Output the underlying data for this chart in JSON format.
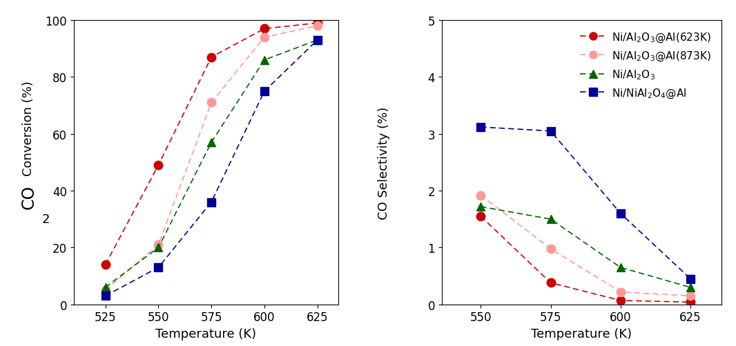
{
  "left_plot": {
    "xlabel": "Temperature (K)",
    "xlim": [
      510,
      635
    ],
    "ylim": [
      0,
      100
    ],
    "xticks": [
      525,
      550,
      575,
      600,
      625
    ],
    "yticks": [
      0,
      20,
      40,
      60,
      80,
      100
    ],
    "series": [
      {
        "x": [
          525,
          550,
          575,
          600,
          625
        ],
        "y": [
          14,
          49,
          87,
          97,
          99
        ],
        "color": "#cc0000",
        "marker": "o",
        "markersize": 9
      },
      {
        "x": [
          525,
          550,
          575,
          600,
          625
        ],
        "y": [
          5,
          21,
          71,
          94,
          98
        ],
        "color": "#ff9999",
        "marker": "o",
        "markersize": 9
      },
      {
        "x": [
          525,
          550,
          575,
          600,
          625
        ],
        "y": [
          6,
          20,
          57,
          86,
          93
        ],
        "color": "#006600",
        "marker": "^",
        "markersize": 9
      },
      {
        "x": [
          525,
          550,
          575,
          600,
          625
        ],
        "y": [
          3,
          13,
          36,
          75,
          93
        ],
        "color": "#000099",
        "marker": "s",
        "markersize": 9
      }
    ]
  },
  "right_plot": {
    "xlabel": "Temperature (K)",
    "ylabel": "CO Selectivity (%)",
    "xlim": [
      536,
      636
    ],
    "ylim": [
      0,
      5
    ],
    "xticks": [
      550,
      575,
      600,
      625
    ],
    "yticks": [
      0,
      1,
      2,
      3,
      4,
      5
    ],
    "series": [
      {
        "x": [
          550,
          575,
          600,
          625
        ],
        "y": [
          1.55,
          0.38,
          0.07,
          0.04
        ],
        "color": "#cc0000",
        "marker": "o",
        "markersize": 9
      },
      {
        "x": [
          550,
          575,
          600,
          625
        ],
        "y": [
          1.92,
          0.98,
          0.22,
          0.15
        ],
        "color": "#ff9999",
        "marker": "o",
        "markersize": 9
      },
      {
        "x": [
          550,
          575,
          600,
          625
        ],
        "y": [
          1.72,
          1.5,
          0.65,
          0.3
        ],
        "color": "#006600",
        "marker": "^",
        "markersize": 9
      },
      {
        "x": [
          550,
          575,
          600,
          625
        ],
        "y": [
          3.12,
          3.05,
          1.6,
          0.45
        ],
        "color": "#000099",
        "marker": "s",
        "markersize": 9
      }
    ]
  },
  "legend_entries": [
    {
      "color": "#cc0000",
      "marker": "o",
      "label": "Ni/Al$_2$O$_3$@Al(623K)"
    },
    {
      "color": "#ff9999",
      "marker": "o",
      "label": "Ni/Al$_2$O$_3$@Al(873K)"
    },
    {
      "color": "#006600",
      "marker": "^",
      "label": "Ni/Al$_2$O$_3$"
    },
    {
      "color": "#000099",
      "marker": "s",
      "label": "Ni/NiAl$_2$O$_4$@Al"
    }
  ],
  "background_color": "#ffffff",
  "tick_fontsize": 12,
  "label_fontsize": 13,
  "legend_fontsize": 11
}
